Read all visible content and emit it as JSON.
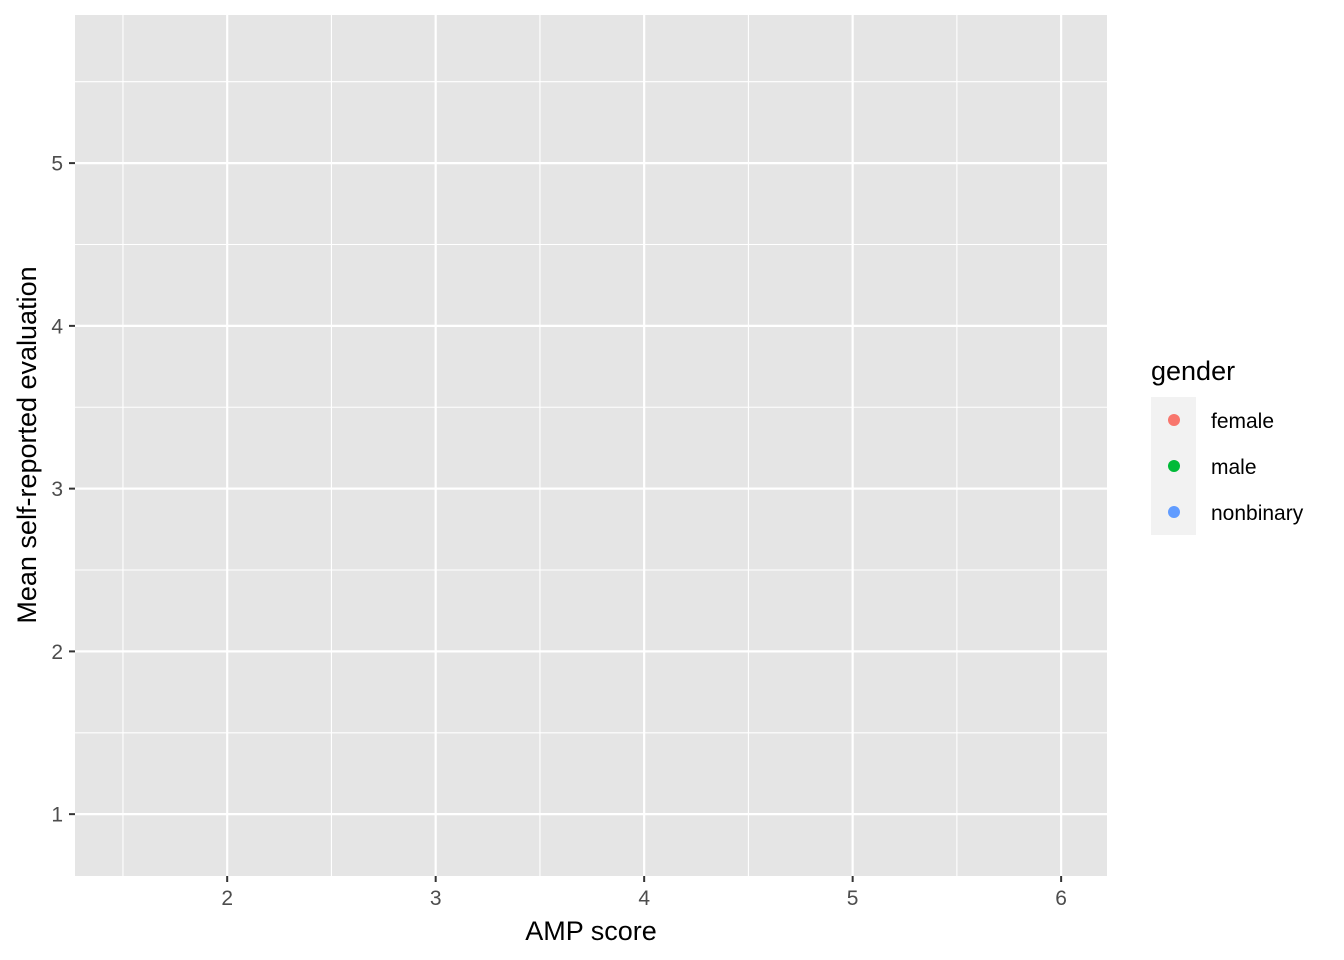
{
  "chart_data": {
    "type": "scatter",
    "title": "",
    "xlabel": "AMP score",
    "ylabel": "Mean self-reported evaluation",
    "xlim": [
      1.27,
      6.22
    ],
    "ylim": [
      0.62,
      5.91
    ],
    "x_ticks": [
      2,
      3,
      4,
      5,
      6
    ],
    "x_tick_labels": [
      "2",
      "3",
      "4",
      "5",
      "6"
    ],
    "x_minor": [
      1.5,
      2.5,
      3.5,
      4.5,
      5.5
    ],
    "y_ticks": [
      1,
      2,
      3,
      4,
      5
    ],
    "y_tick_labels": [
      "1",
      "2",
      "3",
      "4",
      "5"
    ],
    "y_minor": [
      1.5,
      2.5,
      3.5,
      4.5,
      5.5
    ],
    "grid": true,
    "legend": {
      "title": "gender",
      "position": "right",
      "entries": [
        {
          "label": "female",
          "color": "#F8766D"
        },
        {
          "label": "male",
          "color": "#00BA38"
        },
        {
          "label": "nonbinary",
          "color": "#619CFF"
        }
      ]
    },
    "series": []
  },
  "colors": {
    "panel_background": "#e5e5e5",
    "grid_line": "#ffffff",
    "tick_mark": "#333333"
  }
}
